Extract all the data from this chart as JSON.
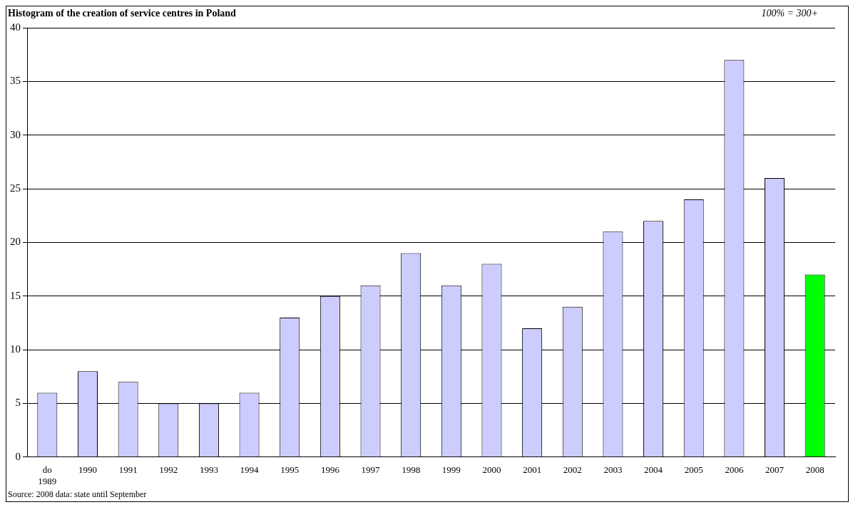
{
  "chart_data": {
    "type": "bar",
    "title": "Histogram of the creation of service centres in Poland",
    "subtitle": "100% = 300+",
    "categories": [
      "do 1989",
      "1990",
      "1991",
      "1992",
      "1993",
      "1994",
      "1995",
      "1996",
      "1997",
      "1998",
      "1999",
      "2000",
      "2001",
      "2002",
      "2003",
      "2004",
      "2005",
      "2006",
      "2007",
      "2008"
    ],
    "values": [
      6,
      8,
      7,
      5,
      5,
      6,
      13,
      15,
      16,
      19,
      16,
      18,
      12,
      14,
      21,
      22,
      24,
      37,
      26,
      17
    ],
    "colors": [
      "#ccccff",
      "#ccccff",
      "#ccccff",
      "#ccccff",
      "#ccccff",
      "#ccccff",
      "#ccccff",
      "#ccccff",
      "#ccccff",
      "#ccccff",
      "#ccccff",
      "#ccccff",
      "#ccccff",
      "#ccccff",
      "#ccccff",
      "#ccccff",
      "#ccccff",
      "#ccccff",
      "#ccccff",
      "#00ff00"
    ],
    "ylim": [
      0,
      40
    ],
    "yticks": [
      0,
      5,
      10,
      15,
      20,
      25,
      30,
      35,
      40
    ],
    "grid": "y",
    "legend": false,
    "annotations": [
      "Source: 2008 data: state until September"
    ]
  }
}
